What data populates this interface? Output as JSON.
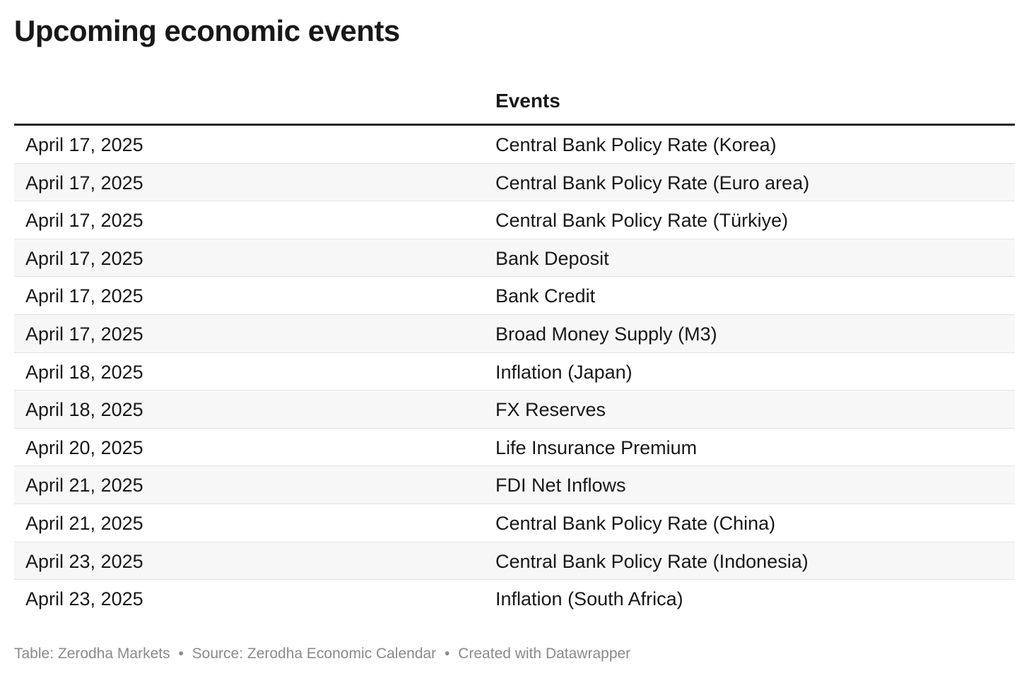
{
  "title": "Upcoming economic events",
  "table": {
    "headers": {
      "date": "",
      "event": "Events"
    },
    "rows": [
      {
        "date": "April 17, 2025",
        "event": "Central Bank Policy Rate (Korea)"
      },
      {
        "date": "April 17, 2025",
        "event": "Central Bank Policy Rate (Euro area)"
      },
      {
        "date": "April 17, 2025",
        "event": "Central Bank Policy Rate (Türkiye)"
      },
      {
        "date": "April 17, 2025",
        "event": "Bank Deposit"
      },
      {
        "date": "April 17, 2025",
        "event": "Bank Credit"
      },
      {
        "date": "April 17, 2025",
        "event": "Broad Money Supply (M3)"
      },
      {
        "date": "April 18, 2025",
        "event": "Inflation (Japan)"
      },
      {
        "date": "April 18, 2025",
        "event": "FX Reserves"
      },
      {
        "date": "April 20, 2025",
        "event": "Life Insurance Premium"
      },
      {
        "date": "April 21, 2025",
        "event": "FDI Net Inflows"
      },
      {
        "date": "April 21, 2025",
        "event": "Central Bank Policy Rate (China)"
      },
      {
        "date": "April 23, 2025",
        "event": "Central Bank Policy Rate (Indonesia)"
      },
      {
        "date": "April 23, 2025",
        "event": "Inflation (South Africa)"
      }
    ]
  },
  "footer": {
    "credit": "Table: Zerodha Markets",
    "separator": "•",
    "source": "Source: Zerodha Economic Calendar",
    "tool": "Created with Datawrapper"
  },
  "colors": {
    "text": "#181818",
    "row_stripe": "#f7f7f7",
    "row_border": "#e3e3e3",
    "header_rule": "#222222",
    "footer_text": "#8a8a8a"
  }
}
